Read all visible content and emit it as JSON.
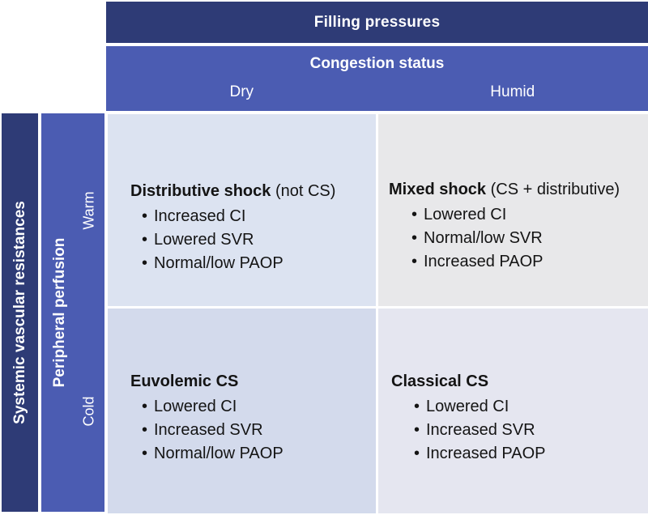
{
  "figure": {
    "top_header": "Filling pressures",
    "congestion_header": "Congestion status",
    "col_labels": {
      "dry": "Dry",
      "humid": "Humid"
    },
    "left_header": "Systemic vascular resistances",
    "perfusion_header": "Peripheral perfusion",
    "row_labels": {
      "warm": "Warm",
      "cold": "Cold"
    },
    "bullet_glyph": "•",
    "quadrants": [
      {
        "id": "warm-dry",
        "title_bold": "Distributive shock",
        "title_rest": " (not CS)",
        "bullets": [
          "Increased CI",
          "Lowered SVR",
          "Normal/low PAOP"
        ]
      },
      {
        "id": "warm-humid",
        "title_bold": "Mixed shock",
        "title_rest": " (CS + distributive)",
        "bullets": [
          "Lowered CI",
          "Normal/low SVR",
          "Increased PAOP"
        ]
      },
      {
        "id": "cold-dry",
        "title_bold": "Euvolemic CS",
        "title_rest": "",
        "bullets": [
          "Lowered CI",
          "Increased SVR",
          "Normal/low PAOP"
        ]
      },
      {
        "id": "cold-humid",
        "title_bold": "Classical CS",
        "title_rest": "",
        "bullets": [
          "Lowered CI",
          "Increased SVR",
          "Increased PAOP"
        ]
      }
    ],
    "colors": {
      "dark_blue": "#2e3b76",
      "medium_blue": "#4b5cb2",
      "quad_warm_dry": "#dce3f1",
      "quad_warm_humid": "#e8e8ea",
      "quad_cold_dry": "#d3daec",
      "quad_cold_humid": "#e5e6f0",
      "text_dark": "#141414",
      "text_light": "#ffffff"
    }
  }
}
